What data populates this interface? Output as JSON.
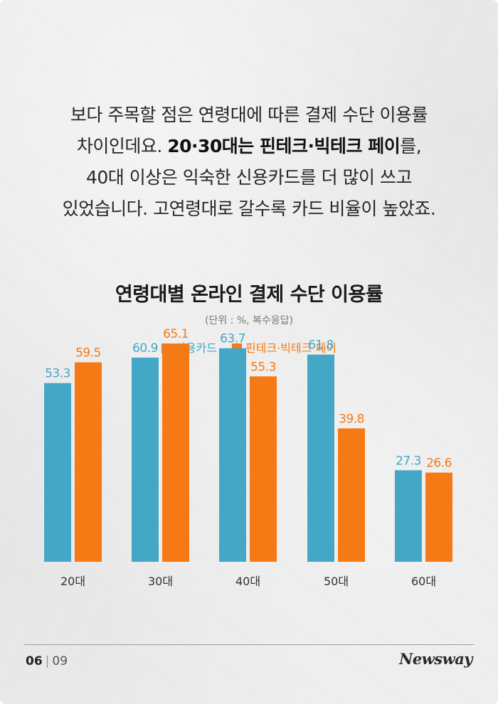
{
  "intro": {
    "line1": "보다 주목할 점은 연령대에 따른 결제 수단 이용률",
    "line2_pre": "차이인데요. ",
    "line2_bold": "20·30대는 핀테크·빅테크 페이",
    "line2_post": "를,",
    "line3": "40대 이상은 익숙한 신용카드를 더 많이 쓰고",
    "line4": "있었습니다. 고연령대로 갈수록 카드 비율이 높았죠."
  },
  "chart_data": {
    "type": "bar",
    "title": "연령대별 온라인 결제 수단 이용률",
    "subtitle": "(단위 : %, 복수응답)",
    "categories": [
      "20대",
      "30대",
      "40대",
      "50대",
      "60대"
    ],
    "series": [
      {
        "name": "신용카드",
        "color": "#45a7c6",
        "values": [
          53.3,
          60.9,
          63.7,
          61.8,
          27.3
        ]
      },
      {
        "name": "핀테크·빅테크 페이",
        "color": "#f57a16",
        "values": [
          59.5,
          65.1,
          55.3,
          39.8,
          26.6
        ]
      }
    ],
    "ylim": [
      0,
      70
    ],
    "grid": false,
    "legend": "top-center"
  },
  "footer": {
    "page_current": "06",
    "page_separator": "|",
    "page_total": "09",
    "logo_text": "Newsway"
  }
}
